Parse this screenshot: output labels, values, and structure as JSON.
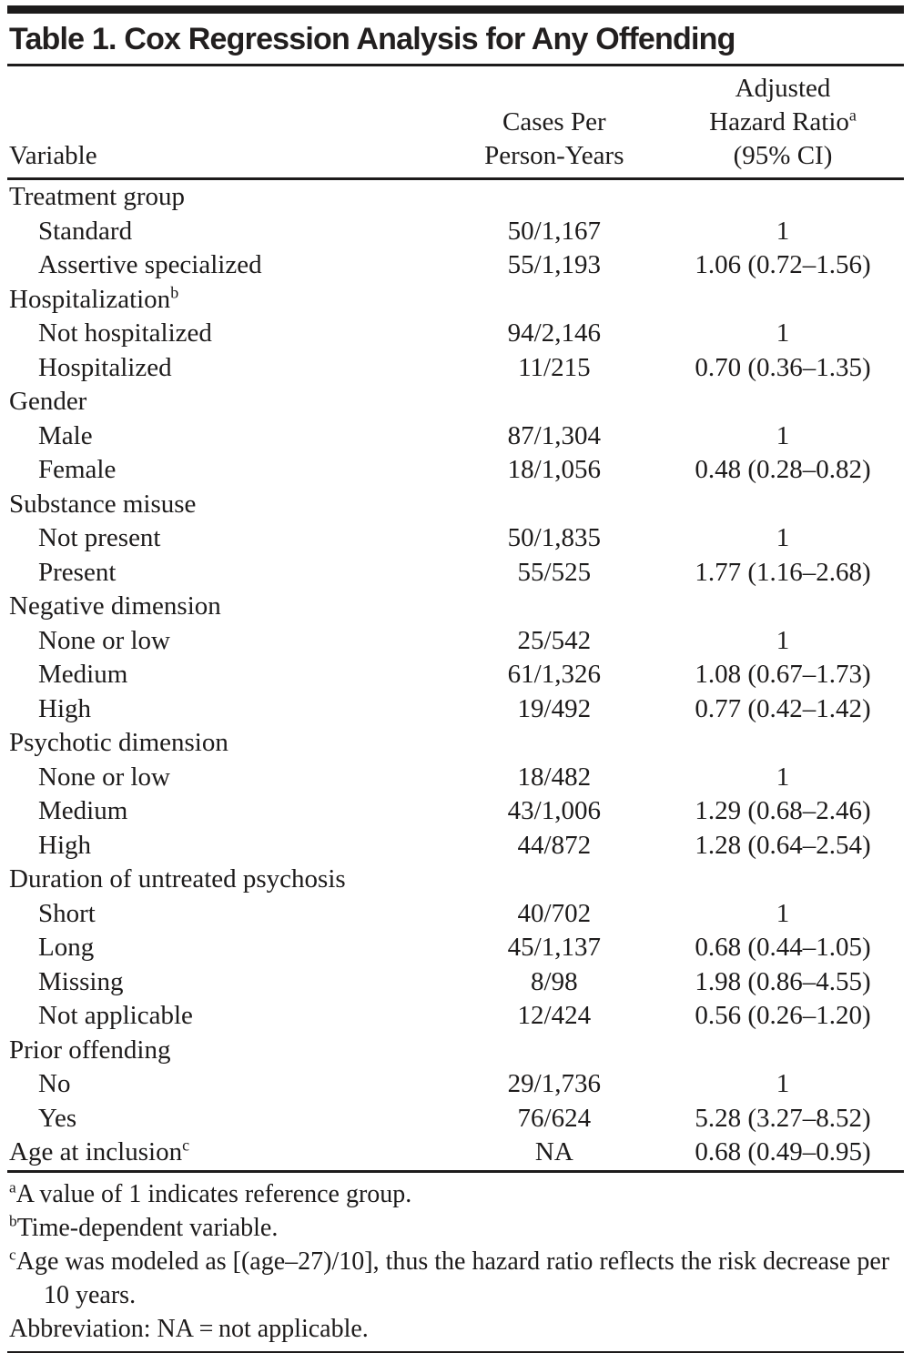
{
  "title": "Table 1. Cox Regression Analysis for Any Offending",
  "columns": {
    "variable": "Variable",
    "cases_line1": "Cases Per",
    "cases_line2": "Person-Years",
    "hr_line1": "Adjusted",
    "hr_line2": "Hazard Ratio",
    "hr_sup": "a",
    "hr_line3": "(95% CI)"
  },
  "rows": [
    {
      "label": "Treatment group",
      "sup": "",
      "indent": false,
      "cases": "",
      "hr": ""
    },
    {
      "label": "Standard",
      "sup": "",
      "indent": true,
      "cases": "50/1,167",
      "hr": "1"
    },
    {
      "label": "Assertive specialized",
      "sup": "",
      "indent": true,
      "cases": "55/1,193",
      "hr": "1.06 (0.72–1.56)"
    },
    {
      "label": "Hospitalization",
      "sup": "b",
      "indent": false,
      "cases": "",
      "hr": ""
    },
    {
      "label": "Not hospitalized",
      "sup": "",
      "indent": true,
      "cases": "94/2,146",
      "hr": "1"
    },
    {
      "label": "Hospitalized",
      "sup": "",
      "indent": true,
      "cases": "11/215",
      "hr": "0.70 (0.36–1.35)"
    },
    {
      "label": "Gender",
      "sup": "",
      "indent": false,
      "cases": "",
      "hr": ""
    },
    {
      "label": "Male",
      "sup": "",
      "indent": true,
      "cases": "87/1,304",
      "hr": "1"
    },
    {
      "label": "Female",
      "sup": "",
      "indent": true,
      "cases": "18/1,056",
      "hr": "0.48 (0.28–0.82)"
    },
    {
      "label": "Substance misuse",
      "sup": "",
      "indent": false,
      "cases": "",
      "hr": ""
    },
    {
      "label": "Not present",
      "sup": "",
      "indent": true,
      "cases": "50/1,835",
      "hr": "1"
    },
    {
      "label": "Present",
      "sup": "",
      "indent": true,
      "cases": "55/525",
      "hr": "1.77 (1.16–2.68)"
    },
    {
      "label": "Negative dimension",
      "sup": "",
      "indent": false,
      "cases": "",
      "hr": ""
    },
    {
      "label": "None or low",
      "sup": "",
      "indent": true,
      "cases": "25/542",
      "hr": "1"
    },
    {
      "label": "Medium",
      "sup": "",
      "indent": true,
      "cases": "61/1,326",
      "hr": "1.08 (0.67–1.73)"
    },
    {
      "label": "High",
      "sup": "",
      "indent": true,
      "cases": "19/492",
      "hr": "0.77 (0.42–1.42)"
    },
    {
      "label": "Psychotic dimension",
      "sup": "",
      "indent": false,
      "cases": "",
      "hr": ""
    },
    {
      "label": "None or low",
      "sup": "",
      "indent": true,
      "cases": "18/482",
      "hr": "1"
    },
    {
      "label": "Medium",
      "sup": "",
      "indent": true,
      "cases": "43/1,006",
      "hr": "1.29 (0.68–2.46)"
    },
    {
      "label": "High",
      "sup": "",
      "indent": true,
      "cases": "44/872",
      "hr": "1.28 (0.64–2.54)"
    },
    {
      "label": "Duration of untreated psychosis",
      "sup": "",
      "indent": false,
      "cases": "",
      "hr": ""
    },
    {
      "label": "Short",
      "sup": "",
      "indent": true,
      "cases": "40/702",
      "hr": "1"
    },
    {
      "label": "Long",
      "sup": "",
      "indent": true,
      "cases": "45/1,137",
      "hr": "0.68 (0.44–1.05)"
    },
    {
      "label": "Missing",
      "sup": "",
      "indent": true,
      "cases": "8/98",
      "hr": "1.98 (0.86–4.55)"
    },
    {
      "label": "Not applicable",
      "sup": "",
      "indent": true,
      "cases": "12/424",
      "hr": "0.56 (0.26–1.20)"
    },
    {
      "label": "Prior offending",
      "sup": "",
      "indent": false,
      "cases": "",
      "hr": ""
    },
    {
      "label": "No",
      "sup": "",
      "indent": true,
      "cases": "29/1,736",
      "hr": "1"
    },
    {
      "label": "Yes",
      "sup": "",
      "indent": true,
      "cases": "76/624",
      "hr": "5.28 (3.27–8.52)"
    },
    {
      "label": "Age at inclusion",
      "sup": "c",
      "indent": false,
      "cases": "NA",
      "hr": "0.68 (0.49–0.95)"
    }
  ],
  "footnotes": [
    {
      "sup": "a",
      "text": "A value of 1 indicates reference group."
    },
    {
      "sup": "b",
      "text": "Time-dependent variable."
    },
    {
      "sup": "c",
      "text": "Age was modeled as [(age–27)/10], thus the hazard ratio reflects the risk decrease per 10 years."
    },
    {
      "sup": "",
      "text": "Abbreviation: NA = not applicable."
    }
  ]
}
